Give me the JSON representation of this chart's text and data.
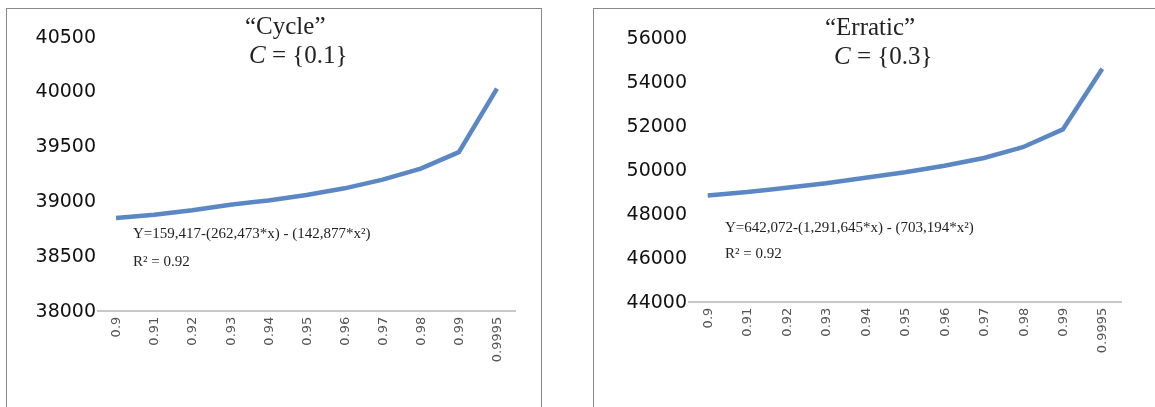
{
  "chart_data": [
    {
      "type": "line",
      "title": "“Cycle”",
      "subtitle": "C = {0.1}",
      "annotations": [
        "Y=159,417-(262,473*x) - (142,877*x²)",
        "R² = 0.92"
      ],
      "categories": [
        "0.9",
        "0.91",
        "0.92",
        "0.93",
        "0.94",
        "0.95",
        "0.96",
        "0.97",
        "0.98",
        "0.99",
        "0.9995"
      ],
      "series": [
        {
          "color": "#5b87c5",
          "values": [
            38840,
            38870,
            38910,
            38960,
            39000,
            39050,
            39110,
            39190,
            39290,
            39440,
            40020
          ]
        }
      ],
      "ylim": [
        38000,
        40500
      ],
      "yticks": [
        38000,
        38500,
        39000,
        39500,
        40000,
        40500
      ]
    },
    {
      "type": "line",
      "title": "“Erratic”",
      "subtitle": "C = {0.3}",
      "annotations": [
        "Y=642,072-(1,291,645*x) - (703,194*x²)",
        "R² = 0.92"
      ],
      "categories": [
        "0.9",
        "0.91",
        "0.92",
        "0.93",
        "0.94",
        "0.95",
        "0.96",
        "0.97",
        "0.98",
        "0.99",
        "0.9995"
      ],
      "series": [
        {
          "color": "#5b87c5",
          "values": [
            48800,
            48950,
            49150,
            49350,
            49600,
            49850,
            50150,
            50500,
            51000,
            51800,
            54560
          ]
        }
      ],
      "ylim": [
        44000,
        56000
      ],
      "yticks": [
        44000,
        46000,
        48000,
        50000,
        52000,
        54000,
        56000
      ]
    }
  ]
}
